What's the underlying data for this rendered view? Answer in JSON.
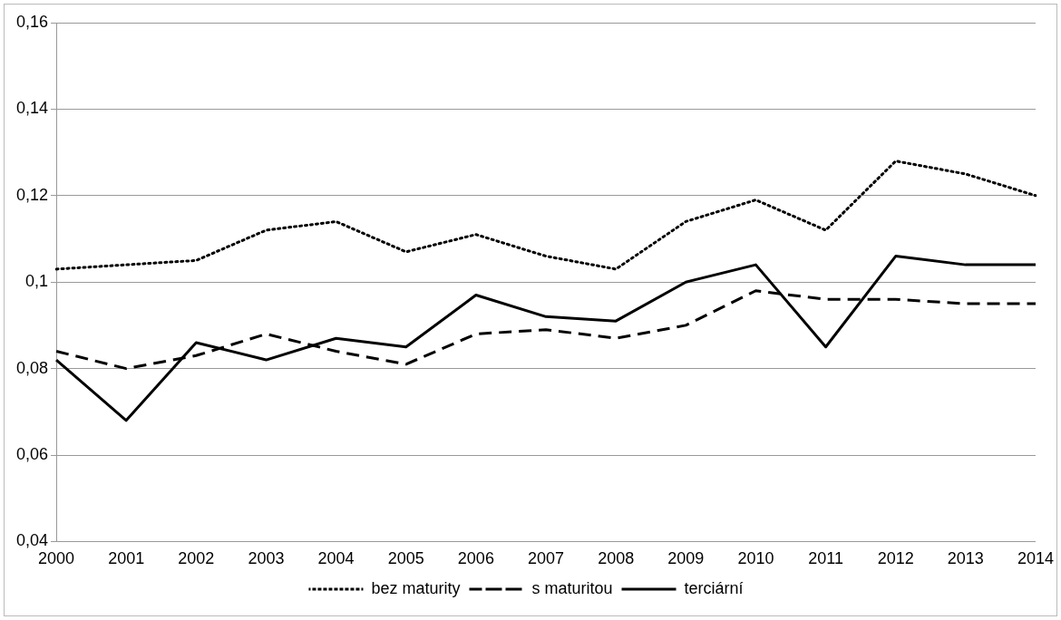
{
  "chart_data": {
    "type": "line",
    "categories": [
      "2000",
      "2001",
      "2002",
      "2003",
      "2004",
      "2005",
      "2006",
      "2007",
      "2008",
      "2009",
      "2010",
      "2011",
      "2012",
      "2013",
      "2014"
    ],
    "series": [
      {
        "name": "bez maturity",
        "color": "#000000",
        "line_style": "dotted",
        "values": [
          0.103,
          0.104,
          0.105,
          0.112,
          0.114,
          0.107,
          0.111,
          0.106,
          0.103,
          0.114,
          0.119,
          0.112,
          0.128,
          0.125,
          0.12
        ]
      },
      {
        "name": "s maturitou",
        "color": "#000000",
        "line_style": "dashed",
        "values": [
          0.084,
          0.08,
          0.083,
          0.088,
          0.084,
          0.081,
          0.088,
          0.089,
          0.087,
          0.09,
          0.098,
          0.096,
          0.096,
          0.095,
          0.095
        ]
      },
      {
        "name": "terciární",
        "color": "#000000",
        "line_style": "solid",
        "values": [
          0.082,
          0.068,
          0.086,
          0.082,
          0.087,
          0.085,
          0.097,
          0.092,
          0.091,
          0.1,
          0.104,
          0.085,
          0.106,
          0.104,
          0.104
        ]
      }
    ],
    "ylim": [
      0.04,
      0.16
    ],
    "yticks": [
      {
        "value": 0.04,
        "label": "0,04"
      },
      {
        "value": 0.06,
        "label": "0,06"
      },
      {
        "value": 0.08,
        "label": "0,08"
      },
      {
        "value": 0.1,
        "label": "0,1"
      },
      {
        "value": 0.12,
        "label": "0,12"
      },
      {
        "value": 0.14,
        "label": "0,14"
      },
      {
        "value": 0.16,
        "label": "0,16"
      }
    ],
    "grid": "y",
    "legend": "bottom",
    "marker": "none"
  }
}
